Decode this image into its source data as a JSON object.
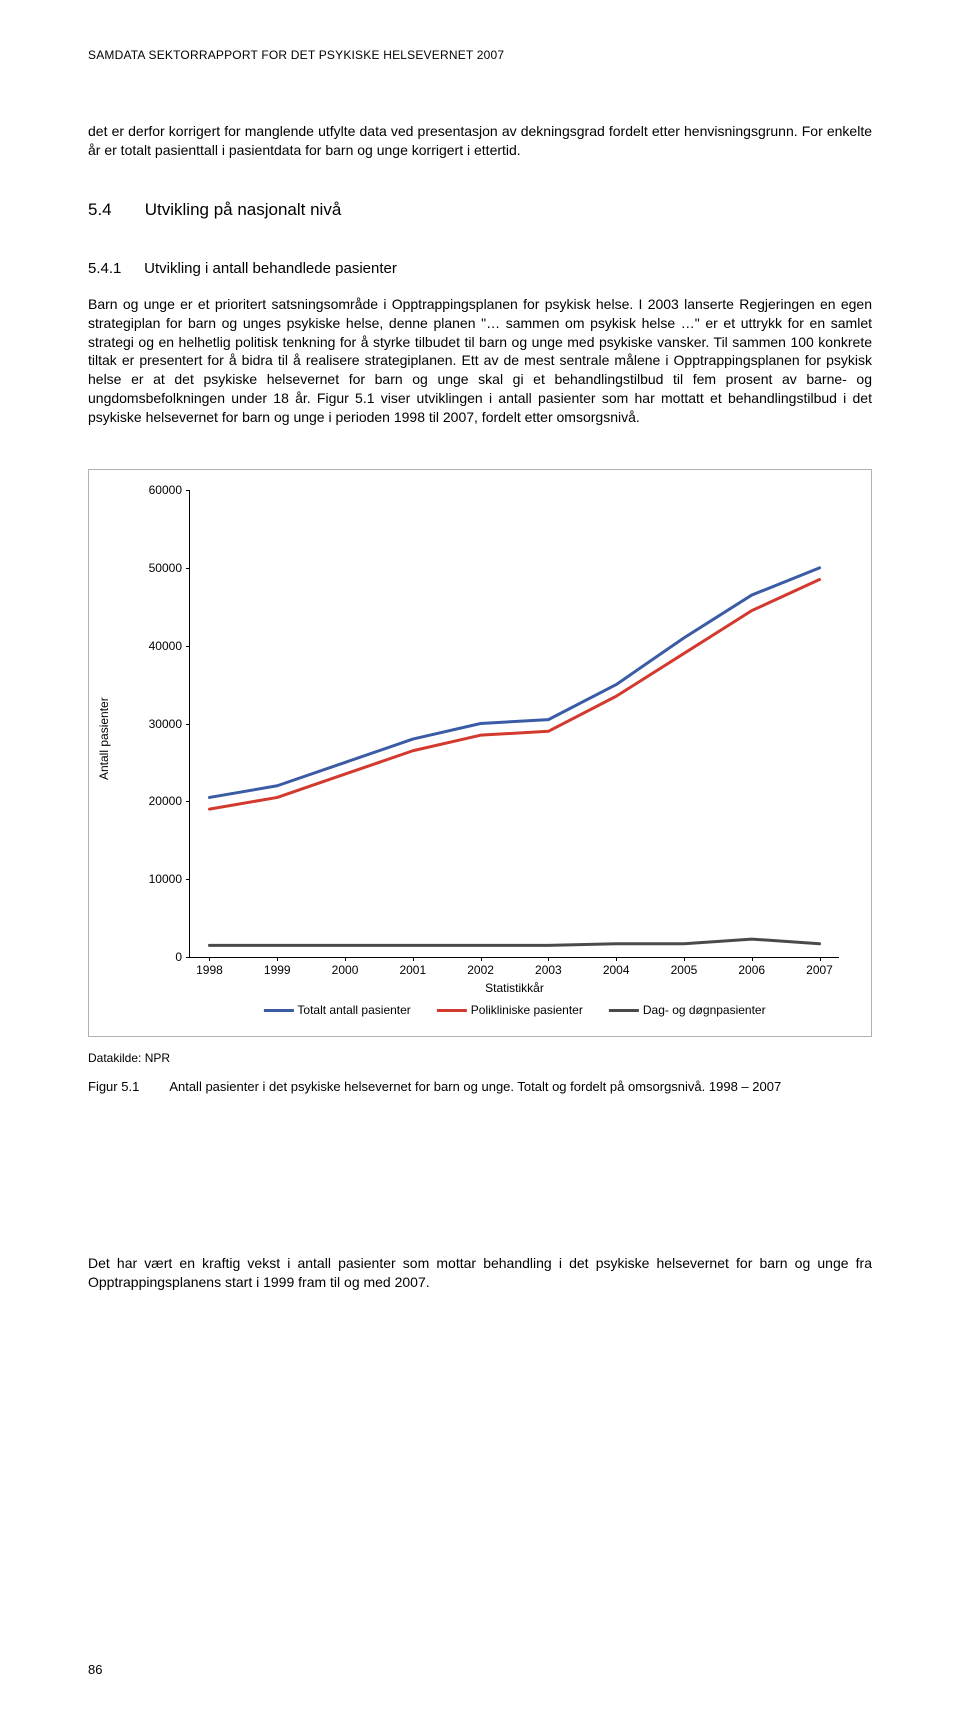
{
  "header": "SAMDATA SEKTORRAPPORT FOR DET PSYKISKE HELSEVERNET 2007",
  "para1": "det er derfor korrigert for manglende utfylte data ved presentasjon av dekningsgrad fordelt etter henvisningsgrunn. For enkelte år er totalt pasienttall i pasientdata for barn og unge korrigert i ettertid.",
  "section": {
    "num": "5.4",
    "title": "Utvikling på nasjonalt nivå"
  },
  "subsection": {
    "num": "5.4.1",
    "title": "Utvikling i antall behandlede pasienter"
  },
  "para2": "Barn og unge er et prioritert satsningsområde i Opptrappingsplanen for psykisk helse. I 2003 lanserte Regjeringen en egen strategiplan for barn og unges psykiske helse, denne planen \"… sammen om psykisk helse …\" er et uttrykk for en samlet strategi og en helhetlig politisk tenkning for å styrke tilbudet til barn og unge med psykiske vansker. Til sammen 100 konkrete tiltak er presentert for å bidra til å realisere strategiplanen. Ett av de mest sentrale målene i Opptrappingsplanen for psykisk helse er at det psykiske helsevernet for barn og unge skal gi et behandlingstilbud til fem prosent av barne- og ungdomsbefolkningen under 18 år. Figur 5.1 viser utviklingen i antall pasienter som har mottatt et behandlingstilbud i det psykiske helsevernet for barn og unge i perioden 1998 til 2007, fordelt etter omsorgsnivå.",
  "chart": {
    "type": "line",
    "ylim": [
      0,
      60000
    ],
    "ytick_step": 10000,
    "yticks": [
      "0",
      "10000",
      "20000",
      "30000",
      "40000",
      "50000",
      "60000"
    ],
    "years": [
      "1998",
      "1999",
      "2000",
      "2001",
      "2002",
      "2003",
      "2004",
      "2005",
      "2006",
      "2007"
    ],
    "x_axis_title": "Statistikkår",
    "y_axis_title": "Antall pasienter",
    "series": [
      {
        "name": "Totalt antall pasienter",
        "color": "#3b5ba5",
        "stroke_width": 3,
        "values": [
          20500,
          22000,
          25000,
          28000,
          30000,
          30500,
          35000,
          41000,
          46500,
          50000
        ]
      },
      {
        "name": "Polikliniske pasienter",
        "color": "#d33a2f",
        "stroke_width": 3,
        "values": [
          19000,
          20500,
          23500,
          26500,
          28500,
          29000,
          33500,
          39000,
          44500,
          48500
        ]
      },
      {
        "name": "Dag- og døgnpasienter",
        "color": "#4a4a4a",
        "stroke_width": 3,
        "values": [
          1500,
          1500,
          1500,
          1500,
          1500,
          1500,
          1700,
          1700,
          2300,
          1700
        ]
      }
    ],
    "background": "#ffffff",
    "border_color": "#b0b0b0"
  },
  "source": "Datakilde: NPR",
  "figcap": {
    "label": "Figur 5.1",
    "text": "Antall pasienter i det psykiske helsevernet for barn og unge. Totalt og fordelt på omsorgsnivå. 1998 – 2007"
  },
  "trailing": "Det har vært en kraftig vekst i antall pasienter som mottar behandling i det psykiske helsevernet for barn og unge fra Opptrappingsplanens start i 1999 fram til og med 2007.",
  "pagenum": "86"
}
